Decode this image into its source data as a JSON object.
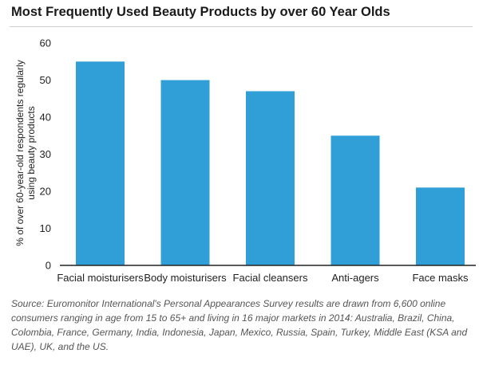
{
  "chart_data": {
    "type": "bar",
    "title": "Most Frequently Used Beauty Products by over 60 Year Olds",
    "ylabel_lines": [
      "% of over 60-year-old respondents regularly",
      "using beauty products"
    ],
    "xlabel": "",
    "categories": [
      "Facial moisturisers",
      "Body moisturisers",
      "Facial cleansers",
      "Anti-agers",
      "Face masks"
    ],
    "values": [
      55,
      50,
      47,
      35,
      21
    ],
    "ylim": [
      0,
      60
    ],
    "yticks": [
      0,
      10,
      20,
      30,
      40,
      50,
      60
    ],
    "grid": false,
    "bar_color": "#309fd7",
    "source": "Source: Euromonitor International's Personal Appearances Survey results are drawn from 6,600 online consumers ranging in age from 15 to 65+ and living in 16 major markets in 2014: Australia, Brazil, China, Colombia, France, Germany, India, Indonesia, Japan, Mexico, Russia, Spain, Turkey, Middle East (KSA and UAE), UK, and the US."
  }
}
